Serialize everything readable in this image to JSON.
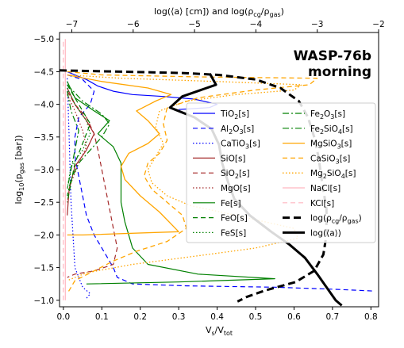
{
  "chart_data": {
    "type": "line",
    "title": [
      "WASP-76b",
      "morning"
    ],
    "xlabel": "V_s/V_tot",
    "ylabel": "log10(p_gas [bar])",
    "top_xlabel": "log(⟨a⟩ [cm]) and log(ρ_cg/ρ_gas)",
    "xlim": [
      -0.01,
      0.82
    ],
    "ylim": [
      -0.9,
      -5.1
    ],
    "top_xlim": [
      -7.2,
      -2.0
    ],
    "xticks": [
      0.0,
      0.1,
      0.2,
      0.3,
      0.4,
      0.5,
      0.6,
      0.7,
      0.8
    ],
    "xtick_labels": [
      "0.0",
      "0.1",
      "0.2",
      "0.3",
      "0.4",
      "0.5",
      "0.6",
      "0.7",
      "0.8"
    ],
    "yticks": [
      -1.0,
      -1.5,
      -2.0,
      -2.5,
      -3.0,
      -3.5,
      -4.0,
      -4.5,
      -5.0
    ],
    "ytick_labels": [
      "−1.0",
      "−1.5",
      "−2.0",
      "−2.5",
      "−3.0",
      "−3.5",
      "−4.0",
      "−4.5",
      "−5.0"
    ],
    "top_xticks": [
      -7,
      -6,
      -5,
      -4,
      -3,
      -2
    ],
    "top_xtick_labels": [
      "−7",
      "−6",
      "−5",
      "−4",
      "−3",
      "−2"
    ],
    "legend_position": "center-right",
    "grid": false,
    "series": [
      {
        "name": "TiO2[s]",
        "color": "#0000ff",
        "dash": "solid",
        "width": 1.2,
        "axis": "bottom",
        "points": [
          [
            0.01,
            -4.5
          ],
          [
            0.03,
            -4.45
          ],
          [
            0.06,
            -4.38
          ],
          [
            0.09,
            -4.28
          ],
          [
            0.13,
            -4.2
          ],
          [
            0.18,
            -4.15
          ],
          [
            0.26,
            -4.12
          ],
          [
            0.34,
            -4.08
          ],
          [
            0.4,
            -4.0
          ],
          [
            0.38,
            -3.95
          ],
          [
            0.3,
            -3.92
          ]
        ]
      },
      {
        "name": "Al2O3[s]",
        "color": "#0000ff",
        "dash": "6,4",
        "width": 1.2,
        "axis": "bottom",
        "points": [
          [
            0.01,
            -4.45
          ],
          [
            0.05,
            -4.38
          ],
          [
            0.08,
            -4.2
          ],
          [
            0.07,
            -4.0
          ],
          [
            0.04,
            -3.8
          ],
          [
            0.03,
            -3.5
          ],
          [
            0.03,
            -3.2
          ],
          [
            0.04,
            -2.9
          ],
          [
            0.05,
            -2.6
          ],
          [
            0.06,
            -2.3
          ],
          [
            0.08,
            -2.0
          ],
          [
            0.11,
            -1.7
          ],
          [
            0.13,
            -1.5
          ],
          [
            0.14,
            -1.35
          ],
          [
            0.18,
            -1.25
          ],
          [
            0.32,
            -1.22
          ],
          [
            0.55,
            -1.2
          ],
          [
            0.7,
            -1.17
          ],
          [
            0.81,
            -1.14
          ]
        ]
      },
      {
        "name": "CaTiO3[s]",
        "color": "#0000ff",
        "dash": "1.5,2.5",
        "width": 1.2,
        "axis": "bottom",
        "points": [
          [
            0.01,
            -4.4
          ],
          [
            0.015,
            -3.5
          ],
          [
            0.02,
            -2.5
          ],
          [
            0.03,
            -1.5
          ],
          [
            0.05,
            -1.2
          ],
          [
            0.07,
            -1.1
          ],
          [
            0.06,
            -1.03
          ]
        ]
      },
      {
        "name": "SiO[s]",
        "color": "#a52a2a",
        "dash": "solid",
        "width": 1.2,
        "axis": "bottom",
        "points": [
          [
            0.01,
            -4.25
          ],
          [
            0.03,
            -4.0
          ],
          [
            0.06,
            -3.75
          ],
          [
            0.08,
            -3.55
          ],
          [
            0.06,
            -3.3
          ],
          [
            0.03,
            -3.05
          ],
          [
            0.015,
            -2.7
          ],
          [
            0.01,
            -2.3
          ]
        ]
      },
      {
        "name": "SiO2[s]",
        "color": "#a52a2a",
        "dash": "6,4",
        "width": 1.2,
        "axis": "bottom",
        "points": [
          [
            0.01,
            -4.2
          ],
          [
            0.03,
            -4.0
          ],
          [
            0.06,
            -3.8
          ],
          [
            0.08,
            -3.55
          ],
          [
            0.09,
            -3.3
          ],
          [
            0.1,
            -3.0
          ],
          [
            0.11,
            -2.7
          ],
          [
            0.12,
            -2.4
          ],
          [
            0.13,
            -2.1
          ],
          [
            0.14,
            -1.8
          ],
          [
            0.13,
            -1.55
          ],
          [
            0.08,
            -1.45
          ],
          [
            0.03,
            -1.4
          ],
          [
            0.01,
            -1.35
          ]
        ]
      },
      {
        "name": "MgO[s]",
        "color": "#a52a2a",
        "dash": "1.5,2.5",
        "width": 1.2,
        "axis": "bottom",
        "points": [
          [
            0.01,
            -4.15
          ],
          [
            0.03,
            -3.9
          ],
          [
            0.05,
            -3.6
          ],
          [
            0.06,
            -3.35
          ],
          [
            0.04,
            -3.1
          ],
          [
            0.02,
            -2.8
          ],
          [
            0.01,
            -2.5
          ]
        ]
      },
      {
        "name": "Fe[s]",
        "color": "#008000",
        "dash": "solid",
        "width": 1.2,
        "axis": "bottom",
        "points": [
          [
            0.01,
            -4.35
          ],
          [
            0.03,
            -4.1
          ],
          [
            0.08,
            -3.9
          ],
          [
            0.12,
            -3.75
          ],
          [
            0.09,
            -3.55
          ],
          [
            0.13,
            -3.35
          ],
          [
            0.15,
            -3.1
          ],
          [
            0.15,
            -2.8
          ],
          [
            0.15,
            -2.5
          ],
          [
            0.16,
            -2.2
          ],
          [
            0.17,
            -2.0
          ],
          [
            0.18,
            -1.8
          ],
          [
            0.22,
            -1.55
          ],
          [
            0.35,
            -1.4
          ],
          [
            0.55,
            -1.33
          ],
          [
            0.3,
            -1.28
          ],
          [
            0.06,
            -1.25
          ]
        ]
      },
      {
        "name": "FeO[s]",
        "color": "#008000",
        "dash": "6,4",
        "width": 1.2,
        "axis": "bottom",
        "points": [
          [
            0.01,
            -4.3
          ],
          [
            0.04,
            -4.0
          ],
          [
            0.07,
            -3.7
          ],
          [
            0.05,
            -3.4
          ],
          [
            0.03,
            -3.1
          ],
          [
            0.02,
            -2.8
          ],
          [
            0.01,
            -2.5
          ]
        ]
      },
      {
        "name": "FeS[s]",
        "color": "#008000",
        "dash": "1.5,2.5",
        "width": 1.2,
        "axis": "bottom",
        "points": [
          [
            0.01,
            -4.25
          ],
          [
            0.03,
            -4.0
          ],
          [
            0.06,
            -3.75
          ],
          [
            0.07,
            -3.55
          ],
          [
            0.05,
            -3.3
          ],
          [
            0.02,
            -3.05
          ],
          [
            0.01,
            -2.7
          ]
        ]
      },
      {
        "name": "Fe2O3[s]",
        "color": "#008000",
        "dash": "8,3,2,3",
        "width": 1.2,
        "axis": "bottom",
        "points": [
          [
            0.01,
            -4.3
          ],
          [
            0.05,
            -4.05
          ],
          [
            0.1,
            -3.85
          ],
          [
            0.12,
            -3.7
          ],
          [
            0.1,
            -3.5
          ],
          [
            0.07,
            -3.3
          ],
          [
            0.04,
            -3.1
          ],
          [
            0.02,
            -2.85
          ],
          [
            0.01,
            -2.6
          ]
        ]
      },
      {
        "name": "Fe2SiO4[s]",
        "color": "#008000",
        "dash": "8,3,2,3",
        "width": 1.2,
        "axis": "bottom",
        "points": [
          [
            0.01,
            -4.2
          ],
          [
            0.02,
            -3.9
          ],
          [
            0.04,
            -3.6
          ],
          [
            0.03,
            -3.3
          ],
          [
            0.02,
            -3.0
          ],
          [
            0.01,
            -2.7
          ]
        ]
      },
      {
        "name": "MgSiO3[s]",
        "color": "#ffa500",
        "dash": "solid",
        "width": 1.3,
        "axis": "bottom",
        "points": [
          [
            0.01,
            -4.45
          ],
          [
            0.1,
            -4.35
          ],
          [
            0.22,
            -4.25
          ],
          [
            0.28,
            -4.15
          ],
          [
            0.24,
            -4.05
          ],
          [
            0.19,
            -3.9
          ],
          [
            0.22,
            -3.75
          ],
          [
            0.25,
            -3.55
          ],
          [
            0.22,
            -3.4
          ],
          [
            0.17,
            -3.25
          ],
          [
            0.15,
            -3.05
          ],
          [
            0.16,
            -2.85
          ],
          [
            0.2,
            -2.6
          ],
          [
            0.25,
            -2.35
          ],
          [
            0.3,
            -2.05
          ],
          [
            0.05,
            -2.0
          ],
          [
            0.01,
            -2.0
          ]
        ]
      },
      {
        "name": "CaSiO3[s]",
        "color": "#ffa500",
        "dash": "6,4",
        "width": 1.3,
        "axis": "bottom",
        "points": [
          [
            0.01,
            -4.5
          ],
          [
            0.1,
            -4.45
          ],
          [
            0.35,
            -4.42
          ],
          [
            0.66,
            -4.4
          ],
          [
            0.64,
            -4.3
          ],
          [
            0.5,
            -4.22
          ],
          [
            0.35,
            -4.1
          ],
          [
            0.27,
            -3.95
          ],
          [
            0.26,
            -3.7
          ],
          [
            0.27,
            -3.45
          ],
          [
            0.25,
            -3.25
          ],
          [
            0.22,
            -3.1
          ],
          [
            0.21,
            -2.9
          ],
          [
            0.23,
            -2.7
          ],
          [
            0.27,
            -2.5
          ],
          [
            0.31,
            -2.3
          ],
          [
            0.32,
            -2.1
          ],
          [
            0.27,
            -1.9
          ],
          [
            0.19,
            -1.75
          ],
          [
            0.13,
            -1.6
          ],
          [
            0.08,
            -1.45
          ],
          [
            0.03,
            -1.3
          ],
          [
            0.01,
            -1.1
          ]
        ]
      },
      {
        "name": "Mg2SiO4[s]",
        "color": "#ffa500",
        "dash": "1.5,2.5",
        "width": 1.3,
        "axis": "bottom",
        "points": [
          [
            0.01,
            -4.45
          ],
          [
            0.15,
            -4.4
          ],
          [
            0.4,
            -4.35
          ],
          [
            0.62,
            -4.3
          ],
          [
            0.6,
            -4.22
          ],
          [
            0.45,
            -4.15
          ],
          [
            0.32,
            -4.05
          ],
          [
            0.25,
            -3.9
          ],
          [
            0.24,
            -3.65
          ],
          [
            0.26,
            -3.4
          ],
          [
            0.24,
            -3.2
          ],
          [
            0.22,
            -3.0
          ],
          [
            0.23,
            -2.8
          ],
          [
            0.27,
            -2.6
          ],
          [
            0.33,
            -2.45
          ],
          [
            0.45,
            -2.3
          ],
          [
            0.6,
            -2.1
          ],
          [
            0.61,
            -1.95
          ],
          [
            0.5,
            -1.8
          ],
          [
            0.35,
            -1.68
          ],
          [
            0.18,
            -1.55
          ],
          [
            0.06,
            -1.42
          ],
          [
            0.01,
            -1.3
          ]
        ]
      },
      {
        "name": "NaCl[s]",
        "color": "#ffb6c1",
        "dash": "solid",
        "width": 1.2,
        "axis": "bottom",
        "points": [
          [
            0.005,
            -1.0
          ],
          [
            0.005,
            -2.0
          ],
          [
            0.005,
            -3.0
          ],
          [
            0.005,
            -4.0
          ],
          [
            0.005,
            -4.5
          ],
          [
            0.005,
            -5.0
          ]
        ]
      },
      {
        "name": "KCl[s]",
        "color": "#ffb6c1",
        "dash": "6,4",
        "width": 1.2,
        "axis": "bottom",
        "points": [
          [
            0.0,
            -1.0
          ],
          [
            0.0,
            -2.0
          ],
          [
            0.0,
            -3.0
          ],
          [
            0.0,
            -4.0
          ],
          [
            0.0,
            -5.0
          ]
        ]
      },
      {
        "name": "log(ρ_cg/ρ_gas)",
        "color": "#000000",
        "dash": "9,5",
        "width": 3.0,
        "axis": "top",
        "points": [
          [
            -7.2,
            -4.52
          ],
          [
            -6.2,
            -4.5
          ],
          [
            -5.2,
            -4.48
          ],
          [
            -4.6,
            -4.45
          ],
          [
            -4.0,
            -4.38
          ],
          [
            -3.6,
            -4.25
          ],
          [
            -3.3,
            -4.05
          ],
          [
            -3.15,
            -3.8
          ],
          [
            -3.05,
            -3.5
          ],
          [
            -2.98,
            -3.2
          ],
          [
            -2.92,
            -2.8
          ],
          [
            -2.85,
            -2.4
          ],
          [
            -2.85,
            -2.0
          ],
          [
            -2.9,
            -1.7
          ],
          [
            -3.05,
            -1.45
          ],
          [
            -3.35,
            -1.28
          ],
          [
            -3.85,
            -1.15
          ],
          [
            -4.15,
            -1.05
          ],
          [
            -4.3,
            -0.98
          ]
        ]
      },
      {
        "name": "log(⟨a⟩)",
        "color": "#000000",
        "dash": "solid",
        "width": 3.0,
        "axis": "top",
        "points": [
          [
            -4.75,
            -4.47
          ],
          [
            -4.65,
            -4.3
          ],
          [
            -5.2,
            -4.12
          ],
          [
            -5.4,
            -3.95
          ],
          [
            -5.0,
            -3.8
          ],
          [
            -4.72,
            -3.62
          ],
          [
            -4.6,
            -3.38
          ],
          [
            -4.55,
            -3.1
          ],
          [
            -4.45,
            -2.8
          ],
          [
            -4.35,
            -2.55
          ],
          [
            -4.1,
            -2.3
          ],
          [
            -3.75,
            -2.05
          ],
          [
            -3.45,
            -1.85
          ],
          [
            -3.2,
            -1.65
          ],
          [
            -3.0,
            -1.4
          ],
          [
            -2.85,
            -1.2
          ],
          [
            -2.7,
            -1.0
          ],
          [
            -2.6,
            -0.92
          ]
        ]
      }
    ]
  },
  "legend": {
    "col1": [
      {
        "label": "TiO",
        "sub": "2",
        "tail": "[s]",
        "series": 0
      },
      {
        "label": "Al",
        "sub": "2",
        "mid": "O",
        "sub2": "3",
        "tail": "[s]",
        "series": 1
      },
      {
        "label": "CaTiO",
        "sub": "3",
        "tail": "[s]",
        "series": 2
      },
      {
        "label": "SiO[s]",
        "series": 3
      },
      {
        "label": "SiO",
        "sub": "2",
        "tail": "[s]",
        "series": 4
      },
      {
        "label": "MgO[s]",
        "series": 5
      },
      {
        "label": "Fe[s]",
        "series": 6
      },
      {
        "label": "FeO[s]",
        "series": 7
      },
      {
        "label": "FeS[s]",
        "series": 8
      }
    ],
    "col2": [
      {
        "label": "Fe",
        "sub": "2",
        "mid": "O",
        "sub2": "3",
        "tail": "[s]",
        "series": 9
      },
      {
        "label": "Fe",
        "sub": "2",
        "mid": "SiO",
        "sub2": "4",
        "tail": "[s]",
        "series": 10
      },
      {
        "label": "MgSiO",
        "sub": "3",
        "tail": "[s]",
        "series": 11
      },
      {
        "label": "CaSiO",
        "sub": "3",
        "tail": "[s]",
        "series": 12
      },
      {
        "label": "Mg",
        "sub": "2",
        "mid": "SiO",
        "sub2": "4",
        "tail": "[s]",
        "series": 13
      },
      {
        "label": "NaCl[s]",
        "series": 14
      },
      {
        "label": "KCl[s]",
        "series": 15
      },
      {
        "label": "log(ρ",
        "sub": "cg",
        "mid": "/ρ",
        "sub2": "gas",
        "tail": ")",
        "series": 16
      },
      {
        "label": "log(⟨a⟩)",
        "series": 17
      }
    ]
  }
}
